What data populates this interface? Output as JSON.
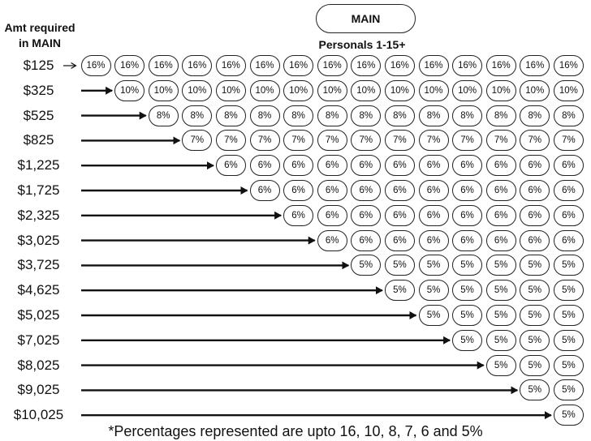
{
  "header": {
    "amt_label": "Amt required in MAIN",
    "main_label": "MAIN",
    "personals_label": "Personals 1-15+"
  },
  "rows": [
    {
      "amount": "$125",
      "start_col": 0,
      "pct": "16%"
    },
    {
      "amount": "$325",
      "start_col": 1,
      "pct": "10%"
    },
    {
      "amount": "$525",
      "start_col": 2,
      "pct": "8%"
    },
    {
      "amount": "$825",
      "start_col": 3,
      "pct": "7%"
    },
    {
      "amount": "$1,225",
      "start_col": 4,
      "pct": "6%"
    },
    {
      "amount": "$1,725",
      "start_col": 5,
      "pct": "6%"
    },
    {
      "amount": "$2,325",
      "start_col": 6,
      "pct": "6%"
    },
    {
      "amount": "$3,025",
      "start_col": 7,
      "pct": "6%"
    },
    {
      "amount": "$3,725",
      "start_col": 8,
      "pct": "5%"
    },
    {
      "amount": "$4,625",
      "start_col": 9,
      "pct": "5%"
    },
    {
      "amount": "$5,025",
      "start_col": 10,
      "pct": "5%"
    },
    {
      "amount": "$7,025",
      "start_col": 11,
      "pct": "5%"
    },
    {
      "amount": "$8,025",
      "start_col": 12,
      "pct": "5%"
    },
    {
      "amount": "$9,025",
      "start_col": 13,
      "pct": "5%"
    },
    {
      "amount": "$10,025",
      "start_col": 14,
      "pct": "5%"
    }
  ],
  "footnote": "*Percentages represented are upto 16, 10, 8, 7, 6 and 5%",
  "colors": {
    "ink": "#111111",
    "border": "#222222",
    "background": "#ffffff"
  }
}
